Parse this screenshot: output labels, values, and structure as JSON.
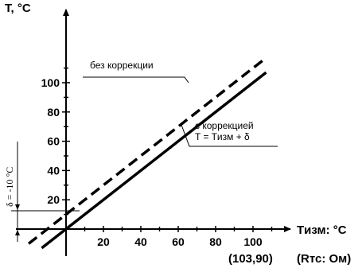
{
  "chart_data": {
    "type": "line",
    "xlabel": "Tизм: °C",
    "xlabel_sub": "(Rтс: Ом)",
    "ylabel": "T, °C",
    "x_ticks": [
      20,
      40,
      60,
      80,
      100
    ],
    "x_tick_extra": "(103,90)",
    "y_ticks": [
      20,
      40,
      60,
      80,
      100
    ],
    "xlim": [
      -28,
      112
    ],
    "ylim": [
      -22,
      122
    ],
    "grid": false,
    "series": [
      {
        "name": "без коррекции",
        "style": "dashed",
        "x": [
          -20,
          107
        ],
        "y": [
          -10,
          117
        ]
      },
      {
        "name": "с коррекцией",
        "formula": "T = Tизм + δ",
        "style": "solid",
        "x": [
          -13,
          107
        ],
        "y": [
          -13,
          107
        ]
      }
    ],
    "offset_label": "δ = -10 °C",
    "offset_value": -10,
    "colors": {
      "line": "#000000",
      "background": "#ffffff"
    }
  }
}
